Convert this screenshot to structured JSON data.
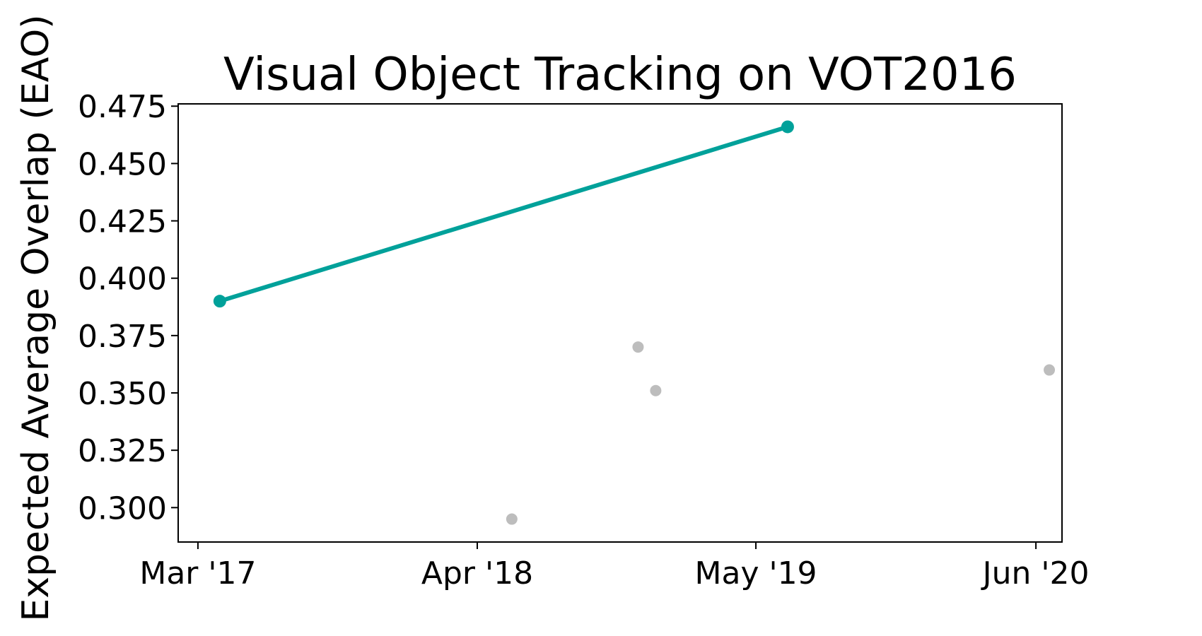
{
  "chart_data": {
    "type": "scatter",
    "title": "Visual Object Tracking on VOT2016",
    "ylabel": "Expected Average Overlap (EAO)",
    "xlabel": "",
    "x_ticks": [
      "Mar '17",
      "Apr '18",
      "May '19",
      "Jun '20"
    ],
    "y_ticks": [
      "0.300",
      "0.325",
      "0.350",
      "0.375",
      "0.400",
      "0.425",
      "0.450",
      "0.475"
    ],
    "ylim": [
      0.285,
      0.476
    ],
    "xlim": [
      "2017-02-01",
      "2020-07-08"
    ],
    "grid": false,
    "legend": "none",
    "colors": {
      "sota": "#00a19a",
      "other": "#bdbdbd"
    },
    "series": [
      {
        "role": "state-of-the-art",
        "values": [
          {
            "x": "2017-04-01",
            "y": 0.39
          },
          {
            "x": "2019-06-15",
            "y": 0.466
          }
        ]
      },
      {
        "role": "other",
        "values": [
          {
            "x": "2018-05-20",
            "y": 0.295
          },
          {
            "x": "2018-11-15",
            "y": 0.37
          },
          {
            "x": "2018-12-10",
            "y": 0.351
          },
          {
            "x": "2020-06-20",
            "y": 0.36
          }
        ]
      }
    ]
  }
}
